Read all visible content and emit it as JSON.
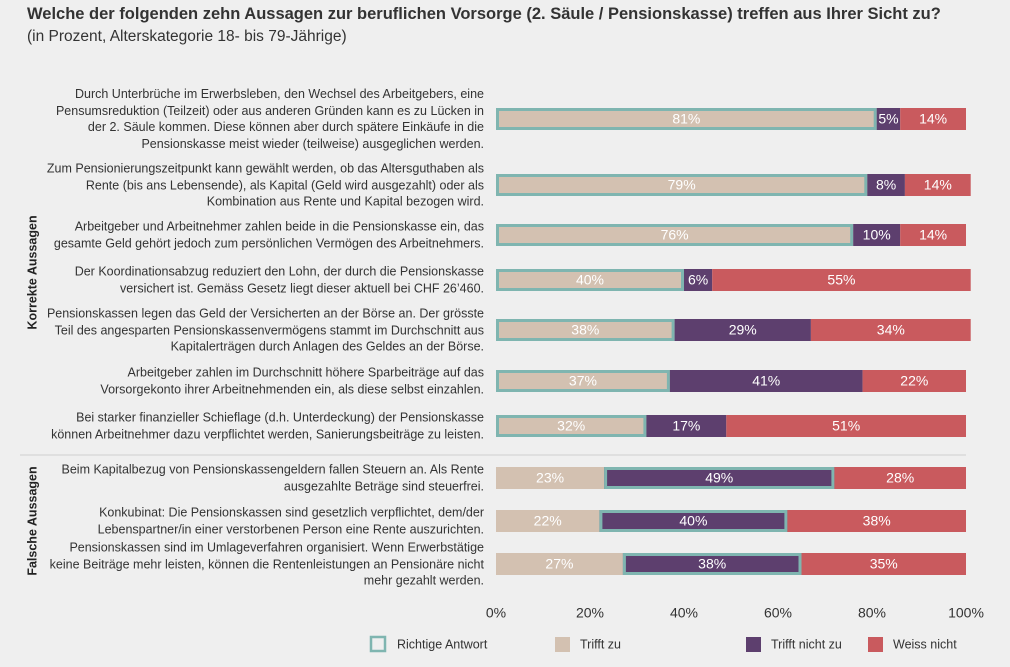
{
  "chart_data": {
    "type": "stacked-bar",
    "title": "Welche der folgenden zehn Aussagen zur beruflichen Vorsorge (2. Säule / Pensionskasse) treffen aus Ihrer Sicht zu?",
    "subtitle": "(in Prozent, Alterskategorie 18- bis 79-Jährige)",
    "groups": [
      {
        "name": "Korrekte Aussagen",
        "categories": [
          "Durch Unterbrüche im Erwerbsleben, den Wechsel des Arbeitgebers, eine Pensumsreduktion (Teilzeit) oder aus anderen Gründen kann es zu Lücken in der 2. Säule kommen. Diese können aber durch spätere Einkäufe in die Pensionskasse meist wieder (teilweise) ausgeglichen werden.",
          "Zum Pensionierungszeitpunkt kann gewählt werden, ob das Altersguthaben als Rente (bis ans Lebensende), als Kapital (Geld wird ausgezahlt) oder als Kombination aus Rente und Kapital bezogen wird.",
          "Arbeitgeber und Arbeitnehmer zahlen beide in die Pensionskasse ein, das gesamte Geld gehört jedoch zum persönlichen Vermögen des Arbeitnehmers.",
          "Der Koordinationsabzug reduziert den Lohn, der durch die Pensionskasse versichert ist. Gemäss Gesetz liegt dieser aktuell bei CHF 26’460.",
          "Pensionskassen legen das Geld der Versicherten an der Börse an. Der grösste Teil des angesparten Pensionskassenvermögens stammt im Durchschnitt aus Kapitalerträgen durch Anlagen des Geldes an der Börse.",
          "Arbeitgeber zahlen im Durchschnitt höhere Sparbeiträge auf das Vorsorgekonto ihrer Arbeitnehmenden ein, als diese selbst einzahlen.",
          "Bei starker finanzieller Schieflage (d.h. Unterdeckung) der Pensionskasse können Arbeitnehmer dazu verpflichtet werden, Sanierungsbeiträge zu leisten."
        ],
        "correct_answer": "Trifft zu"
      },
      {
        "name": "Falsche Aussagen",
        "categories": [
          "Beim Kapitalbezug von Pensionskassengeldern fallen Steuern an. Als Rente ausgezahlte Beträge sind steuerfrei.",
          "Konkubinat: Die Pensionskassen sind gesetzlich verpflichtet, dem/der Lebenspartner/in einer verstorbenen Person eine Rente auszurichten.",
          "Pensionskassen sind im Umlageverfahren organisiert. Wenn Erwerbstätige keine Beiträge mehr leisten, können die Rentenleistungen an Pensionäre nicht mehr gezahlt werden."
        ],
        "correct_answer": "Trifft nicht zu"
      }
    ],
    "series": [
      {
        "name": "Trifft zu",
        "color": "#d3c1b1",
        "values": [
          81,
          79,
          76,
          40,
          38,
          37,
          32,
          23,
          22,
          27
        ],
        "value_labels": [
          "81%",
          "79%",
          "76%",
          "40%",
          "38%",
          "37%",
          "32%",
          "23%",
          "22%",
          "27%"
        ]
      },
      {
        "name": "Trifft nicht zu",
        "color": "#5d3f6e",
        "values": [
          5,
          8,
          10,
          6,
          29,
          41,
          17,
          49,
          40,
          38
        ],
        "value_labels": [
          "5%",
          "8%",
          "10%",
          "6%",
          "29%",
          "41%",
          "17%",
          "49%",
          "40%",
          "38%"
        ]
      },
      {
        "name": "Weiss nicht",
        "color": "#c95a5e",
        "values": [
          14,
          14,
          14,
          55,
          34,
          22,
          51,
          28,
          38,
          35
        ],
        "value_labels": [
          "14%",
          "14%",
          "14%",
          "55%",
          "34%",
          "22%",
          "51%",
          "28%",
          "38%",
          "35%"
        ]
      }
    ],
    "highlight": {
      "name": "Richtige Antwort",
      "color": "#7fb5b0"
    },
    "xlim": [
      0,
      100
    ],
    "xticks": [
      {
        "value": 0,
        "label": "0%"
      },
      {
        "value": 20,
        "label": "20%"
      },
      {
        "value": 40,
        "label": "40%"
      },
      {
        "value": 60,
        "label": "60%"
      },
      {
        "value": 80,
        "label": "80%"
      },
      {
        "value": 100,
        "label": "100%"
      }
    ]
  }
}
